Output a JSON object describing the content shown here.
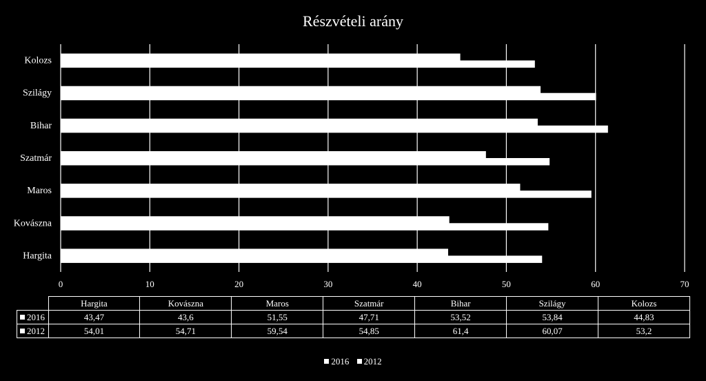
{
  "chart_data": {
    "type": "bar",
    "orientation": "horizontal",
    "title": "Részvételi arány",
    "categories": [
      "Hargita",
      "Kovászna",
      "Maros",
      "Szatmár",
      "Bihar",
      "Szilágy",
      "Kolozs"
    ],
    "series": [
      {
        "name": "2016",
        "values": [
          43.47,
          43.6,
          51.55,
          47.71,
          53.52,
          53.84,
          44.83
        ]
      },
      {
        "name": "2012",
        "values": [
          54.01,
          54.71,
          59.54,
          54.85,
          61.4,
          60.07,
          53.2
        ]
      }
    ],
    "value_labels": {
      "2016": [
        "43,47",
        "43,6",
        "51,55",
        "47,71",
        "53,52",
        "53,84",
        "44,83"
      ],
      "2012": [
        "54,01",
        "54,71",
        "59,54",
        "54,85",
        "61,4",
        "60,07",
        "53,2"
      ]
    },
    "xlim": [
      0,
      70
    ],
    "xticks": [
      0,
      10,
      20,
      30,
      40,
      50,
      60,
      70
    ],
    "grid": true,
    "legend": "bottom",
    "data_table": true,
    "colors": {
      "background": "#000000",
      "bars": "#ffffff",
      "text": "#ffffff"
    }
  }
}
